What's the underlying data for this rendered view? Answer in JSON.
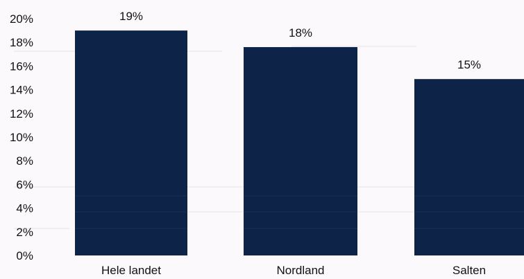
{
  "chart_data": {
    "type": "bar",
    "categories": [
      "Hele landet",
      "Nordland",
      "Salten"
    ],
    "values": [
      19,
      17.6,
      14.9
    ],
    "data_labels": [
      "19%",
      "18%",
      "15%"
    ],
    "ylim": [
      0,
      20
    ],
    "yticks": [
      0,
      2,
      4,
      6,
      8,
      10,
      12,
      14,
      16,
      18,
      20
    ],
    "ytick_labels": [
      "0%",
      "2%",
      "4%",
      "6%",
      "8%",
      "10%",
      "12%",
      "14%",
      "16%",
      "18%",
      "20%"
    ],
    "grid": false,
    "legend": "none",
    "bar_color": "#0d2347"
  }
}
